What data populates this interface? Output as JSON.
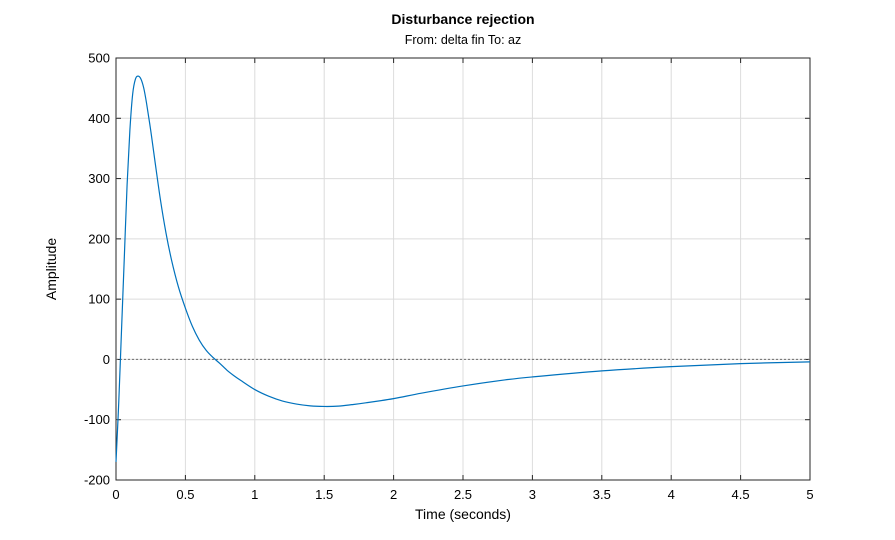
{
  "chart_data": {
    "type": "line",
    "title": "Disturbance rejection",
    "subtitle": "From: delta fin  To: az",
    "xlabel": "Time (seconds)",
    "ylabel": "Amplitude",
    "xlim": [
      0,
      5
    ],
    "ylim": [
      -200,
      500
    ],
    "xticks": [
      "0",
      "0.5",
      "1",
      "1.5",
      "2",
      "2.5",
      "3",
      "3.5",
      "4",
      "4.5",
      "5"
    ],
    "yticks": [
      "-200",
      "-100",
      "0",
      "100",
      "200",
      "300",
      "400",
      "500"
    ],
    "grid": true,
    "reference_line_y": 0,
    "series": [
      {
        "color": "#0072BD",
        "x": [
          0,
          0.02,
          0.04,
          0.06,
          0.08,
          0.1,
          0.12,
          0.14,
          0.16,
          0.18,
          0.2,
          0.22,
          0.25,
          0.28,
          0.32,
          0.36,
          0.4,
          0.45,
          0.5,
          0.55,
          0.6,
          0.65,
          0.7,
          0.75,
          0.8,
          0.85,
          0.9,
          1.0,
          1.1,
          1.2,
          1.3,
          1.4,
          1.5,
          1.6,
          1.7,
          1.8,
          2.0,
          2.2,
          2.5,
          2.8,
          3.0,
          3.5,
          4.0,
          4.5,
          5.0
        ],
        "y": [
          -170,
          -70,
          50,
          170,
          290,
          380,
          440,
          465,
          470,
          465,
          450,
          425,
          380,
          330,
          265,
          210,
          165,
          120,
          85,
          55,
          32,
          15,
          3,
          -7,
          -18,
          -27,
          -35,
          -50,
          -61,
          -69,
          -74,
          -77,
          -78,
          -77.5,
          -75,
          -72,
          -65,
          -56,
          -44,
          -34,
          -29,
          -19,
          -12,
          -7,
          -4
        ]
      }
    ]
  }
}
